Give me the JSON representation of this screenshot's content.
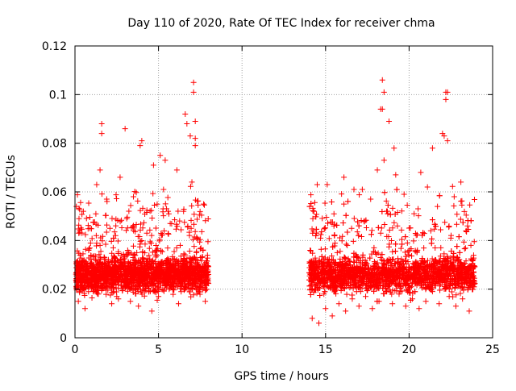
{
  "chart_data": {
    "type": "scatter",
    "title": "Day 110 of 2020, Rate Of TEC Index for receiver chma",
    "xlabel": "GPS time / hours",
    "ylabel": "ROTI / TECUs",
    "xlim": [
      0,
      25
    ],
    "ylim": [
      0,
      0.12
    ],
    "x_ticks": [
      0,
      5,
      10,
      15,
      20,
      25
    ],
    "x_tick_labels": [
      "0",
      "5",
      "10",
      "15",
      "20",
      "25"
    ],
    "y_ticks": [
      0,
      0.02,
      0.04,
      0.06,
      0.08,
      0.1,
      0.12
    ],
    "y_tick_labels": [
      "0",
      "0.02",
      "0.04",
      "0.06",
      "0.08",
      "0.1",
      "0.12"
    ],
    "grid": true,
    "marker": "+",
    "color": "#ff0000",
    "series": [
      {
        "x": [
          0.1,
          0.3,
          0.5,
          0.7,
          0.9,
          1.1,
          1.3,
          1.5,
          1.6,
          1.7,
          1.9,
          2.1,
          2.3,
          2.5,
          2.7,
          2.9,
          3.1,
          3.3,
          3.5,
          3.7,
          3.9,
          4.1,
          4.3,
          4.5,
          4.7,
          4.9,
          5.1,
          5.3,
          5.5,
          5.7,
          5.9,
          6.1,
          6.3,
          6.5,
          6.7,
          6.9,
          7.0,
          7.1,
          7.2,
          7.3,
          7.5,
          7.7,
          7.9,
          1.6,
          1.5,
          3.0,
          4.0,
          5.1,
          5.4,
          6.6,
          6.9,
          7.1,
          7.2,
          7.2,
          0.2,
          0.6,
          1.0,
          1.4,
          1.8,
          2.2,
          2.6,
          3.4,
          3.8,
          4.2,
          4.6,
          5.0,
          5.8,
          6.2,
          7.4,
          7.8,
          14.1,
          14.3,
          14.5,
          14.7,
          14.9,
          15.1,
          15.3,
          15.5,
          15.7,
          15.9,
          16.1,
          16.3,
          16.5,
          16.7,
          16.9,
          17.1,
          17.3,
          17.5,
          17.7,
          17.9,
          18.1,
          18.3,
          18.4,
          18.5,
          18.7,
          18.9,
          19.1,
          19.3,
          19.5,
          19.7,
          19.9,
          20.1,
          20.3,
          20.5,
          20.7,
          20.9,
          21.1,
          21.3,
          21.5,
          21.7,
          21.9,
          22.1,
          22.2,
          22.3,
          22.5,
          22.7,
          22.9,
          23.1,
          23.3,
          23.5,
          23.7,
          23.9,
          18.4,
          18.3,
          18.5,
          18.8,
          19.2,
          22.2,
          22.3,
          22.0,
          21.4,
          14.5,
          16.1,
          17.2,
          14.2,
          14.6,
          15.0,
          15.4,
          15.8,
          16.2,
          16.6,
          17.0,
          17.4,
          17.8,
          18.2,
          18.6,
          19.0,
          19.4,
          19.8,
          20.2,
          20.6,
          21.0,
          21.4,
          21.8,
          22.4,
          22.8,
          23.2,
          23.6
        ],
        "y": [
          0.021,
          0.034,
          0.052,
          0.026,
          0.045,
          0.019,
          0.063,
          0.038,
          0.084,
          0.022,
          0.057,
          0.031,
          0.041,
          0.017,
          0.066,
          0.029,
          0.049,
          0.024,
          0.058,
          0.035,
          0.079,
          0.027,
          0.043,
          0.019,
          0.071,
          0.036,
          0.025,
          0.061,
          0.032,
          0.047,
          0.021,
          0.069,
          0.038,
          0.052,
          0.088,
          0.029,
          0.064,
          0.101,
          0.082,
          0.041,
          0.033,
          0.055,
          0.024,
          0.088,
          0.069,
          0.086,
          0.081,
          0.075,
          0.073,
          0.092,
          0.083,
          0.105,
          0.089,
          0.079,
          0.015,
          0.012,
          0.023,
          0.018,
          0.027,
          0.014,
          0.016,
          0.021,
          0.013,
          0.025,
          0.011,
          0.017,
          0.022,
          0.014,
          0.019,
          0.015,
          0.031,
          0.052,
          0.024,
          0.041,
          0.018,
          0.063,
          0.029,
          0.046,
          0.035,
          0.022,
          0.055,
          0.038,
          0.027,
          0.061,
          0.033,
          0.019,
          0.048,
          0.026,
          0.057,
          0.037,
          0.069,
          0.043,
          0.094,
          0.073,
          0.052,
          0.032,
          0.078,
          0.046,
          0.028,
          0.059,
          0.039,
          0.024,
          0.051,
          0.036,
          0.068,
          0.031,
          0.062,
          0.044,
          0.025,
          0.054,
          0.037,
          0.083,
          0.101,
          0.081,
          0.041,
          0.058,
          0.033,
          0.064,
          0.029,
          0.046,
          0.038,
          0.022,
          0.106,
          0.094,
          0.101,
          0.089,
          0.067,
          0.098,
          0.101,
          0.084,
          0.078,
          0.063,
          0.066,
          0.061,
          0.008,
          0.006,
          0.012,
          0.009,
          0.014,
          0.011,
          0.016,
          0.013,
          0.017,
          0.012,
          0.015,
          0.019,
          0.014,
          0.018,
          0.013,
          0.016,
          0.012,
          0.015,
          0.019,
          0.014,
          0.017,
          0.013,
          0.016,
          0.011
        ]
      }
    ]
  }
}
